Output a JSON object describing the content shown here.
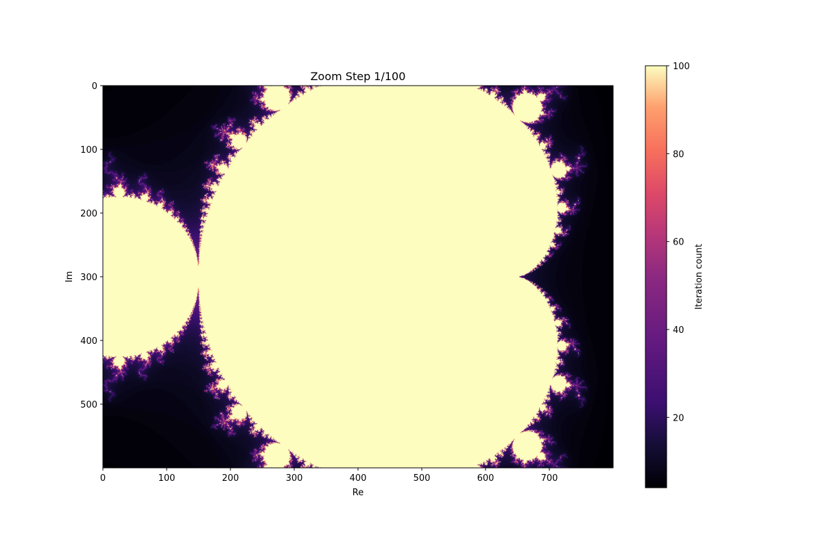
{
  "chart_data": {
    "type": "heatmap",
    "title": "Zoom Step 1/100",
    "xlabel": "Re",
    "ylabel": "Im",
    "xlim": [
      0,
      800
    ],
    "ylim": [
      600,
      0
    ],
    "x_ticks": [
      0,
      100,
      200,
      300,
      400,
      500,
      600,
      700
    ],
    "y_ticks": [
      0,
      100,
      200,
      300,
      400,
      500
    ],
    "grid": false,
    "colormap": "magma",
    "colorbar": {
      "label": "Iteration count",
      "range": [
        4,
        100
      ],
      "ticks": [
        20,
        40,
        60,
        80,
        100
      ]
    },
    "max_iterations": 100,
    "description_regions": [
      {
        "name": "main-cardioid-interior",
        "value": 100
      },
      {
        "name": "period-2-bulb-interior",
        "value": 100
      },
      {
        "name": "exterior-low-iterations",
        "value": 5
      }
    ]
  }
}
